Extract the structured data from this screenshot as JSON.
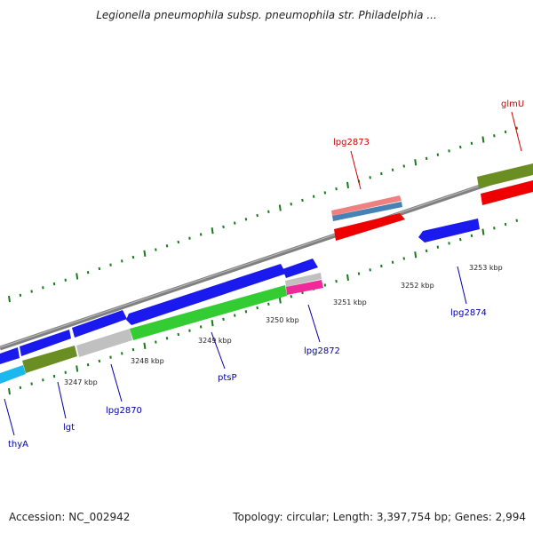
{
  "title": "Legionella pneumophila subsp. pneumophila str. Philadelphia ...",
  "footer": {
    "accession": "Accession: NC_002942",
    "summary": "Topology: circular; Length: 3,397,754 bp; Genes: 2,994"
  },
  "colors": {
    "backbone": "#808080",
    "tick": "#1a7a1a",
    "blue_gene": "#1a1aee",
    "red_gene": "#ee0000",
    "olive_gene": "#6b8e23",
    "green_gene": "#33cc33",
    "cyan_gene": "#1ab8ee",
    "gray_gene": "#c0c0c0",
    "pink_gene": "#ee2a9a",
    "salmon_gene": "#f08080",
    "steel_gene": "#4682b4",
    "label_blue": "#0000aa",
    "label_red": "#cc0000"
  },
  "scale_labels": [
    "3247 kbp",
    "3248 kbp",
    "3249 kbp",
    "3250 kbp",
    "3251 kbp",
    "3252 kbp",
    "3253 kbp"
  ],
  "gene_labels": [
    {
      "name": "thyA",
      "color": "label_blue"
    },
    {
      "name": "lgt",
      "color": "label_blue"
    },
    {
      "name": "lpg2870",
      "color": "label_blue"
    },
    {
      "name": "ptsP",
      "color": "label_blue"
    },
    {
      "name": "lpg2872",
      "color": "label_blue"
    },
    {
      "name": "lpg2874",
      "color": "label_blue"
    },
    {
      "name": "lpg2873",
      "color": "label_red"
    },
    {
      "name": "glmU",
      "color": "label_red"
    }
  ]
}
